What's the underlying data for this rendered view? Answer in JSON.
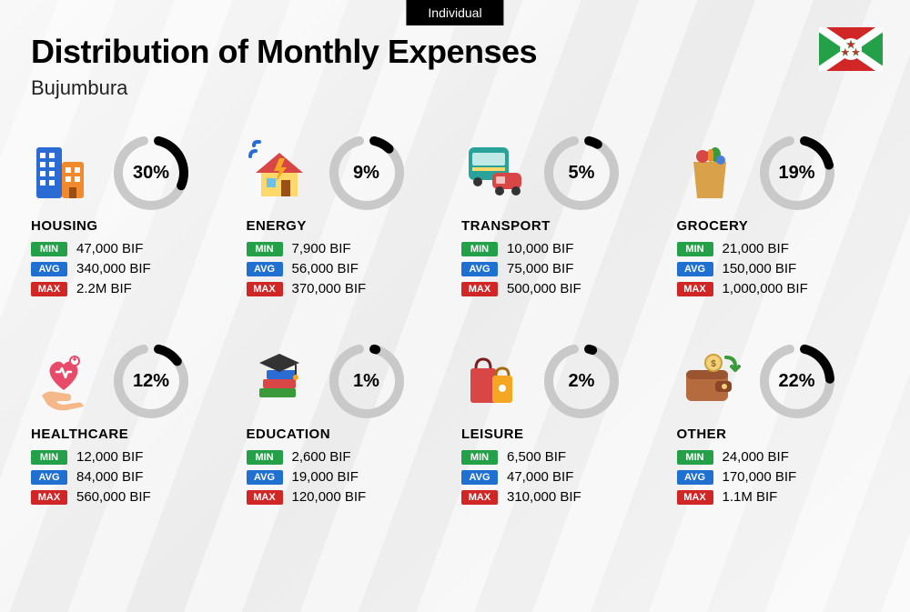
{
  "badge": "Individual",
  "title": "Distribution of Monthly Expenses",
  "subtitle": "Bujumbura",
  "colors": {
    "min": "#24a148",
    "avg": "#1f70d1",
    "max": "#d02626",
    "donut_track": "#c9c9c9",
    "donut_fill": "#000000",
    "page_bg_light": "#f8f8f8",
    "page_bg_dark": "#ececec"
  },
  "labels": {
    "min": "MIN",
    "avg": "AVG",
    "max": "MAX"
  },
  "donut": {
    "radius": 36,
    "stroke_width": 10,
    "track_gap_deg": 26,
    "size": 84
  },
  "flag": {
    "field": "#ffffff",
    "top_bottom": "#d02626",
    "left_right": "#24a148",
    "center_bg": "#ffffff",
    "star_fill": "#d02626",
    "star_stroke": "#24a148"
  },
  "categories": [
    {
      "name": "HOUSING",
      "pct": 30,
      "min": "47,000 BIF",
      "avg": "340,000 BIF",
      "max": "2.2M BIF",
      "icon": "buildings"
    },
    {
      "name": "ENERGY",
      "pct": 9,
      "min": "7,900 BIF",
      "avg": "56,000 BIF",
      "max": "370,000 BIF",
      "icon": "house-energy"
    },
    {
      "name": "TRANSPORT",
      "pct": 5,
      "min": "10,000 BIF",
      "avg": "75,000 BIF",
      "max": "500,000 BIF",
      "icon": "bus-car"
    },
    {
      "name": "GROCERY",
      "pct": 19,
      "min": "21,000 BIF",
      "avg": "150,000 BIF",
      "max": "1,000,000 BIF",
      "icon": "grocery-bag"
    },
    {
      "name": "HEALTHCARE",
      "pct": 12,
      "min": "12,000 BIF",
      "avg": "84,000 BIF",
      "max": "560,000 BIF",
      "icon": "heart-hand"
    },
    {
      "name": "EDUCATION",
      "pct": 1,
      "min": "2,600 BIF",
      "avg": "19,000 BIF",
      "max": "120,000 BIF",
      "icon": "books-cap"
    },
    {
      "name": "LEISURE",
      "pct": 2,
      "min": "6,500 BIF",
      "avg": "47,000 BIF",
      "max": "310,000 BIF",
      "icon": "shopping-bags"
    },
    {
      "name": "OTHER",
      "pct": 22,
      "min": "24,000 BIF",
      "avg": "170,000 BIF",
      "max": "1.1M BIF",
      "icon": "wallet"
    }
  ]
}
